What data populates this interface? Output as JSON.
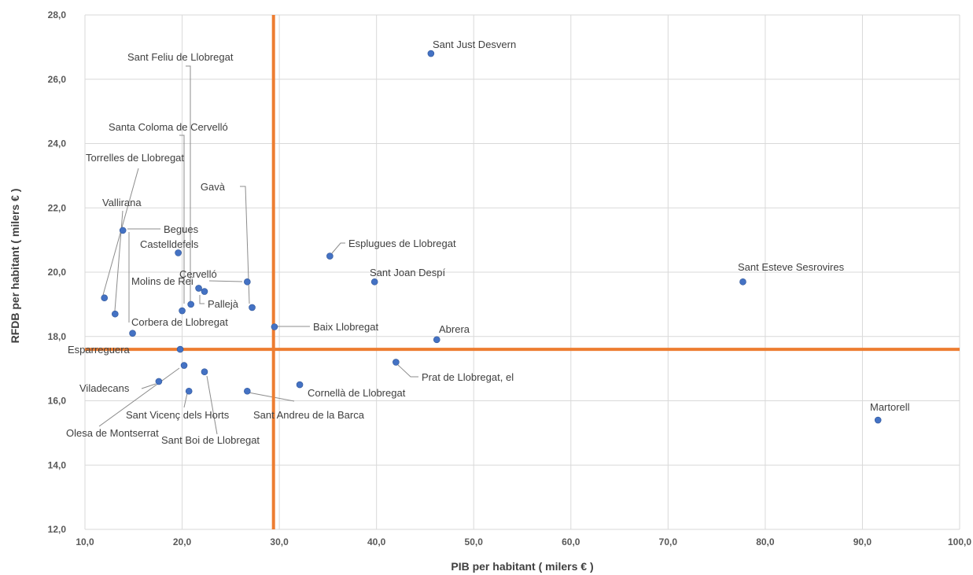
{
  "chart_data": {
    "type": "scatter",
    "xlabel": "PIB per habitant ( milers € )",
    "ylabel": "RFDB per habitant ( milers € )",
    "xlim": [
      10,
      100
    ],
    "ylim": [
      12,
      28
    ],
    "x_ticks": [
      "10,0",
      "20,0",
      "30,0",
      "40,0",
      "50,0",
      "60,0",
      "70,0",
      "80,0",
      "90,0",
      "100,0"
    ],
    "y_ticks": [
      "12,0",
      "14,0",
      "16,0",
      "18,0",
      "20,0",
      "22,0",
      "24,0",
      "26,0",
      "28,0"
    ],
    "grid": true,
    "reference_lines": {
      "x": 29.4,
      "y": 17.6,
      "color": "#ed7d31"
    },
    "point_color": "#4472c4",
    "points": [
      {
        "label": "Sant Just Desvern",
        "x": 45.6,
        "y": 26.8
      },
      {
        "label": "Sant Feliu de Llobregat",
        "x": 20.9,
        "y": 19.0
      },
      {
        "label": "Santa Coloma de Cervelló",
        "x": 20.0,
        "y": 18.8
      },
      {
        "label": "Torrelles de Llobregat",
        "x": 12.0,
        "y": 19.2
      },
      {
        "label": "Gavà",
        "x": 27.2,
        "y": 18.9
      },
      {
        "label": "Vallirana",
        "x": 13.1,
        "y": 18.7
      },
      {
        "label": "Begues",
        "x": 13.9,
        "y": 21.3
      },
      {
        "label": "Castelldefels",
        "x": 19.6,
        "y": 20.6
      },
      {
        "label": "Esplugues de Llobregat",
        "x": 35.2,
        "y": 20.5
      },
      {
        "label": "Sant Joan Despí",
        "x": 39.8,
        "y": 19.7
      },
      {
        "label": "Sant Esteve Sesrovires",
        "x": 77.7,
        "y": 19.7
      },
      {
        "label": "Cervelló",
        "x": 26.7,
        "y": 19.7
      },
      {
        "label": "Molins de Rei",
        "x": 21.7,
        "y": 19.5
      },
      {
        "label": "Pallejà",
        "x": 22.3,
        "y": 19.4
      },
      {
        "label": "Corbera de Llobregat",
        "x": 14.9,
        "y": 18.1
      },
      {
        "label": "Baix Llobregat",
        "x": 29.5,
        "y": 18.3
      },
      {
        "label": "Abrera",
        "x": 46.2,
        "y": 17.9
      },
      {
        "label": "Esparreguera",
        "x": 19.8,
        "y": 17.6
      },
      {
        "label": "Prat de Llobregat, el",
        "x": 42.0,
        "y": 17.2
      },
      {
        "label": "Viladecans",
        "x": 17.6,
        "y": 16.6
      },
      {
        "label": "Olesa de Montserrat",
        "x": 20.2,
        "y": 17.1
      },
      {
        "label": "Sant Vicenç dels Horts",
        "x": 20.7,
        "y": 16.3
      },
      {
        "label": "Sant Boi de Llobregat",
        "x": 22.3,
        "y": 16.9
      },
      {
        "label": "Sant Andreu de la Barca",
        "x": 26.7,
        "y": 16.3
      },
      {
        "label": "Cornellà de Llobregat",
        "x": 32.1,
        "y": 16.5
      },
      {
        "label": "Martorell",
        "x": 91.6,
        "y": 15.4
      }
    ]
  }
}
